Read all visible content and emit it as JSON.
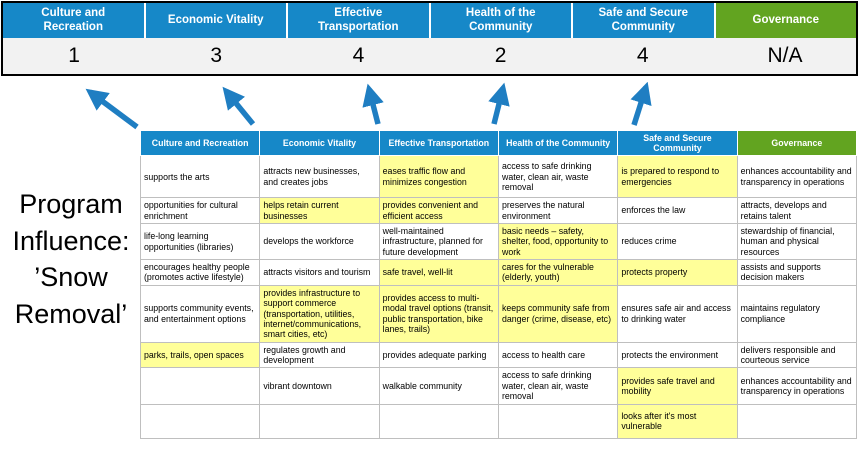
{
  "title": "Program Influence: ’Snow Removal’",
  "colors": {
    "blue": "#1688C8",
    "green": "#62A420",
    "highlight": "#FFFF99",
    "arrow": "#1F7EC2"
  },
  "score_band": {
    "columns": [
      {
        "label": "Culture and Recreation",
        "score": "1",
        "theme": "blue"
      },
      {
        "label": "Economic Vitality",
        "score": "3",
        "theme": "blue"
      },
      {
        "label": "Effective Transportation",
        "score": "4",
        "theme": "blue"
      },
      {
        "label": "Health of the Community",
        "score": "2",
        "theme": "blue"
      },
      {
        "label": "Safe and Secure Community",
        "score": "4",
        "theme": "blue"
      },
      {
        "label": "Governance",
        "score": "N/A",
        "theme": "green"
      }
    ]
  },
  "matrix": {
    "headers": [
      {
        "label": "Culture and Recreation",
        "theme": "blue"
      },
      {
        "label": "Economic Vitality",
        "theme": "blue"
      },
      {
        "label": "Effective Transportation",
        "theme": "blue"
      },
      {
        "label": "Health of the Community",
        "theme": "blue"
      },
      {
        "label": "Safe and Secure Community",
        "theme": "blue"
      },
      {
        "label": "Governance",
        "theme": "green"
      }
    ],
    "rows": [
      [
        {
          "text": "supports the arts",
          "highlight": false
        },
        {
          "text": "attracts new businesses, and creates jobs",
          "highlight": false
        },
        {
          "text": "eases traffic flow and minimizes congestion",
          "highlight": true
        },
        {
          "text": "access to safe drinking water, clean air, waste removal",
          "highlight": false
        },
        {
          "text": "is prepared to respond to emergencies",
          "highlight": true
        },
        {
          "text": "enhances accountability and transparency in operations",
          "highlight": false
        }
      ],
      [
        {
          "text": "opportunities for cultural enrichment",
          "highlight": false
        },
        {
          "text": "helps retain current businesses",
          "highlight": true
        },
        {
          "text": "provides convenient and efficient access",
          "highlight": true
        },
        {
          "text": "preserves the natural environment",
          "highlight": false
        },
        {
          "text": "enforces the law",
          "highlight": false
        },
        {
          "text": "attracts, develops and retains talent",
          "highlight": false
        }
      ],
      [
        {
          "text": "life-long learning opportunities (libraries)",
          "highlight": false
        },
        {
          "text": "develops the workforce",
          "highlight": false
        },
        {
          "text": "well-maintained infrastructure, planned for future development",
          "highlight": false
        },
        {
          "text": "basic needs – safety, shelter, food, opportunity to work",
          "highlight": true
        },
        {
          "text": "reduces crime",
          "highlight": false
        },
        {
          "text": "stewardship of financial, human and physical resources",
          "highlight": false
        }
      ],
      [
        {
          "text": "encourages healthy people (promotes active lifestyle)",
          "highlight": false
        },
        {
          "text": "attracts visitors and tourism",
          "highlight": false
        },
        {
          "text": "safe travel, well-lit",
          "highlight": true
        },
        {
          "text": "cares for the vulnerable (elderly, youth)",
          "highlight": true
        },
        {
          "text": "protects property",
          "highlight": true
        },
        {
          "text": "assists and supports decision makers",
          "highlight": false
        }
      ],
      [
        {
          "text": "supports community events, and entertainment options",
          "highlight": false
        },
        {
          "text": "provides infrastructure to support commerce (transportation, utilities, internet/communications, smart cities, etc)",
          "highlight": true
        },
        {
          "text": "provides access to multi-modal travel options (transit, public transportation, bike lanes, trails)",
          "highlight": true
        },
        {
          "text": "keeps community safe from danger (crime, disease, etc)",
          "highlight": true
        },
        {
          "text": "ensures safe air and access to drinking water",
          "highlight": false
        },
        {
          "text": "maintains regulatory compliance",
          "highlight": false
        }
      ],
      [
        {
          "text": "parks, trails, open spaces",
          "highlight": true
        },
        {
          "text": "regulates growth and development",
          "highlight": false
        },
        {
          "text": "provides adequate parking",
          "highlight": false
        },
        {
          "text": "access to health care",
          "highlight": false
        },
        {
          "text": "protects the environment",
          "highlight": false
        },
        {
          "text": "delivers responsible and courteous service",
          "highlight": false
        }
      ],
      [
        {
          "text": "",
          "highlight": false
        },
        {
          "text": "vibrant downtown",
          "highlight": false
        },
        {
          "text": "walkable community",
          "highlight": false
        },
        {
          "text": "access to safe drinking water, clean air, waste removal",
          "highlight": false
        },
        {
          "text": "provides safe travel and mobility",
          "highlight": true
        },
        {
          "text": "enhances accountability and transparency in operations",
          "highlight": false
        }
      ],
      [
        {
          "text": "",
          "highlight": false
        },
        {
          "text": "",
          "highlight": false
        },
        {
          "text": "",
          "highlight": false
        },
        {
          "text": "",
          "highlight": false
        },
        {
          "text": "looks after it's most vulnerable",
          "highlight": true
        },
        {
          "text": "",
          "highlight": false
        }
      ]
    ]
  }
}
